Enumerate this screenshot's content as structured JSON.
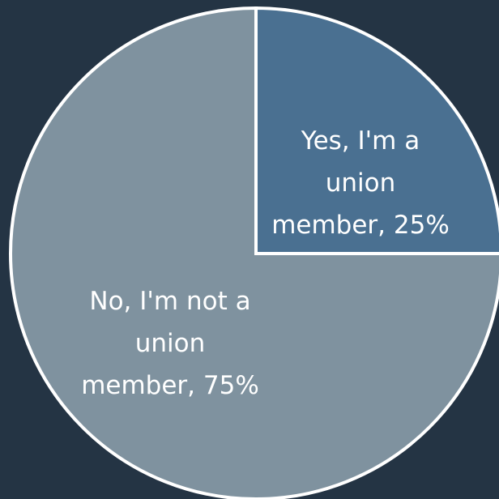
{
  "colors": {
    "background": "#243444",
    "slice_border": "#ffffff"
  },
  "chart_data": {
    "type": "pie",
    "title": "",
    "start_angle_deg": 0,
    "direction": "clockwise",
    "slices": [
      {
        "label_lines": [
          "Yes, I'm a",
          "union",
          "member, 25%"
        ],
        "value": 25,
        "color": "#4a7091"
      },
      {
        "label_lines": [
          "No, I'm not a",
          "union",
          "member, 75%"
        ],
        "value": 75,
        "color": "#7f929f"
      }
    ]
  }
}
